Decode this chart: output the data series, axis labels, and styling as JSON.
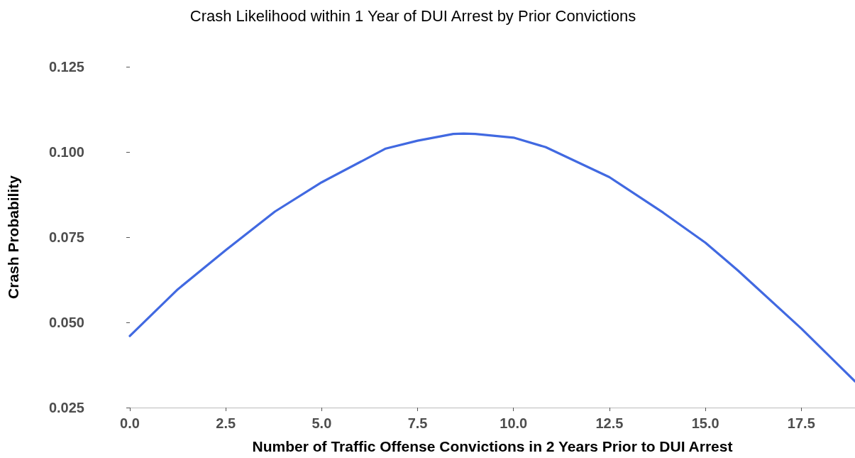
{
  "chart_data": {
    "type": "line",
    "title": "Crash Likelihood within 1 Year of DUI Arrest by Prior Convictions",
    "xlabel": "Number of Traffic Offense Convictions in 2 Years Prior to DUI Arrest",
    "ylabel": "Crash Probability",
    "x": [
      0,
      1.25,
      2.5,
      3.78,
      5.0,
      6.67,
      7.5,
      8.43,
      8.7,
      9.0,
      10.0,
      10.84,
      12.5,
      13.9,
      15.0,
      15.85,
      17.5,
      18.9
    ],
    "series": [
      {
        "color": "#4169e1",
        "values": [
          0.046,
          0.0597,
          0.0712,
          0.0825,
          0.0911,
          0.101,
          0.1033,
          0.1053,
          0.1054,
          0.1053,
          0.1042,
          0.1014,
          0.0926,
          0.0822,
          0.0734,
          0.0652,
          0.0482,
          0.0327
        ]
      }
    ],
    "xlim": [
      0,
      18.9
    ],
    "xticks": [
      {
        "value": 0,
        "label": "0.0"
      },
      2.5,
      {
        "value": 5,
        "label": "5.0"
      },
      7.5,
      {
        "value": 10,
        "label": "10.0"
      },
      12.5,
      {
        "value": 15,
        "label": "15.0"
      },
      17.5
    ],
    "ylim": [
      0.025,
      0.125
    ],
    "yticks": [
      0.025,
      {
        "value": 0.05,
        "label": "0.050"
      },
      0.075,
      {
        "value": 0.1,
        "label": "0.100"
      },
      0.125
    ],
    "grid": false,
    "marker": "none",
    "line_style": "solid"
  }
}
